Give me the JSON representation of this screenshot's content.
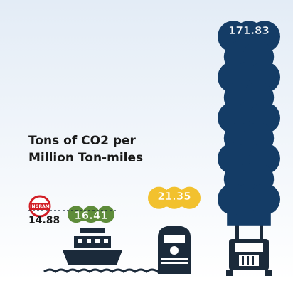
{
  "chart_data": {
    "type": "pictograph",
    "title_lines": [
      "Tons of CO2 per",
      "Million Ton-miles"
    ],
    "values": [
      16.41,
      21.35,
      171.83
    ],
    "colors": [
      "#5e8c3a",
      "#f2c12e",
      "#143c66"
    ],
    "reference": {
      "label": "INGRAM",
      "value": 14.88
    }
  }
}
